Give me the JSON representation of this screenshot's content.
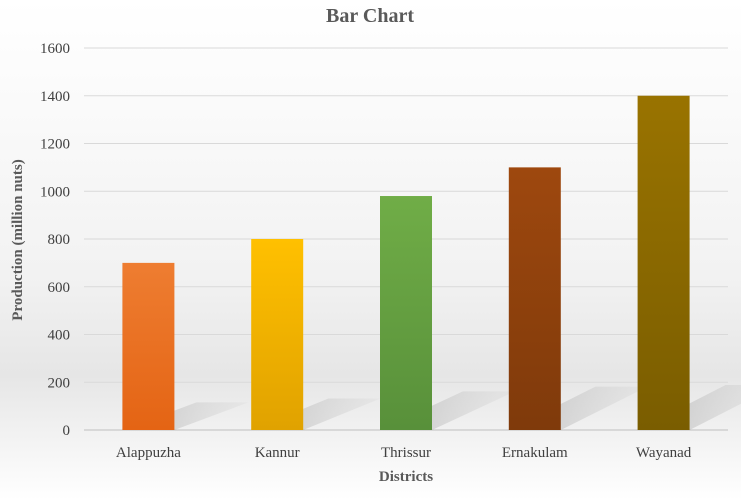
{
  "chart_data": {
    "type": "bar",
    "title": "Bar Chart",
    "xlabel": "Districts",
    "ylabel": "Production (million nuts)",
    "categories": [
      "Alappuzha",
      "Kannur",
      "Thrissur",
      "Ernakulam",
      "Wayanad"
    ],
    "values": [
      700,
      800,
      980,
      1100,
      1400
    ],
    "ylim": [
      0,
      1600
    ],
    "yticks": [
      0,
      200,
      400,
      600,
      800,
      1000,
      1200,
      1400,
      1600
    ],
    "grid": true,
    "legend": "none",
    "colors": [
      [
        "#ee7d31",
        "#e46414"
      ],
      [
        "#ffc000",
        "#e0a200"
      ],
      [
        "#70ad47",
        "#58903a"
      ],
      [
        "#9e480e",
        "#7f3a0b"
      ],
      [
        "#997300",
        "#7a5d00"
      ]
    ]
  }
}
